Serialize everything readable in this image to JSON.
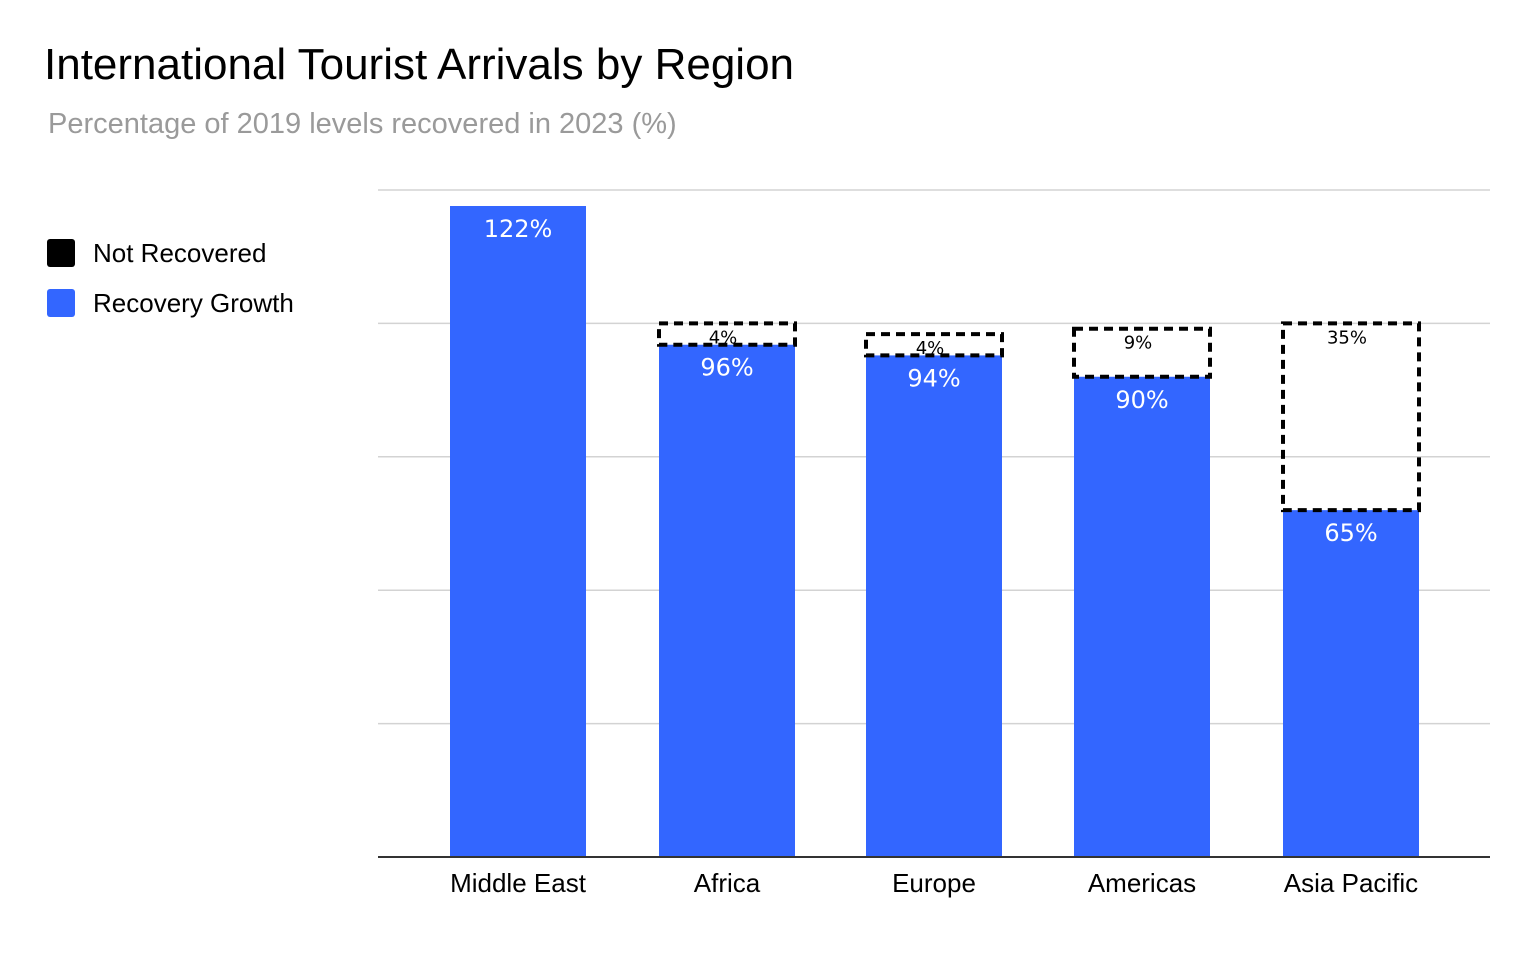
{
  "chart_data": {
    "type": "bar",
    "title": "International Tourist Arrivals by Region",
    "subtitle": "Percentage of 2019 levels recovered in 2023 (%)",
    "categories": [
      "Middle East",
      "Africa",
      "Europe",
      "Americas",
      "Asia Pacific"
    ],
    "series": [
      {
        "name": "Not Recovered",
        "values": [
          0,
          4,
          4,
          9,
          35
        ],
        "color": "#000000",
        "style": "dashed-outline"
      },
      {
        "name": "Recovery Growth",
        "values": [
          122,
          96,
          94,
          90,
          65
        ],
        "color": "#3366ff"
      }
    ],
    "data_labels": {
      "recovery": [
        "122%",
        "96%",
        "94%",
        "90%",
        "65%"
      ],
      "not_recovered": [
        "",
        "4%",
        "4%",
        "9%",
        "35%"
      ]
    },
    "ylim": [
      0,
      125
    ],
    "grid": true,
    "legend_position": "left"
  },
  "legend": {
    "items": [
      {
        "label": "Not Recovered",
        "color": "#000000"
      },
      {
        "label": "Recovery Growth",
        "color": "#3366ff"
      }
    ]
  }
}
